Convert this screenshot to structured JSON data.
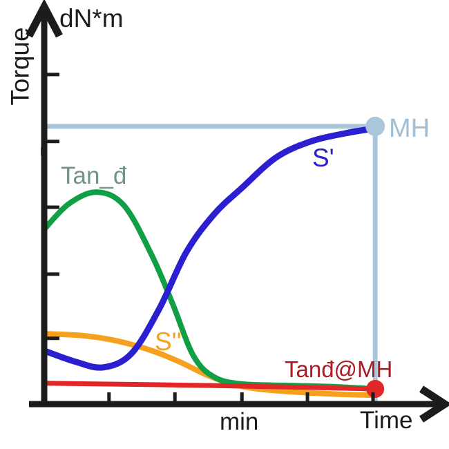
{
  "page": {
    "background": "#ffffff"
  },
  "axes": {
    "y_label": "Torque",
    "y_unit_label": "dN*m",
    "x_label": "Time",
    "x_unit_label": "min",
    "color": "#1c1c1c"
  },
  "curve_labels": {
    "tan_delta": {
      "text": "Tan_đ",
      "color": "#6f9681"
    },
    "s_prime": {
      "text": "S'",
      "color": "#2a20cf"
    },
    "s_double_prime": {
      "text": "S''",
      "color": "#f6a11e"
    },
    "mh": {
      "text": "MH",
      "color": "#a3bed2"
    },
    "tan_delta_at_mh": {
      "text": "Tanđ@MH",
      "color": "#a81c25"
    }
  },
  "chart_data": {
    "type": "line",
    "title": "",
    "xlabel": "Time",
    "x_unit": "min",
    "ylabel": "Torque",
    "y_unit": "dN*m",
    "x_range": [
      0,
      1
    ],
    "y_range": [
      0,
      1
    ],
    "grid": false,
    "legend_position": "inline-labels",
    "axis_color": "#1c1c1c",
    "series": [
      {
        "name": "S'",
        "color": "#2a20cf",
        "width": 9,
        "z": 4,
        "points": [
          [
            0,
            0.138
          ],
          [
            0.086,
            0.109
          ],
          [
            0.16,
            0.095
          ],
          [
            0.235,
            0.13
          ],
          [
            0.31,
            0.245
          ],
          [
            0.384,
            0.393
          ],
          [
            0.459,
            0.491
          ],
          [
            0.534,
            0.559
          ],
          [
            0.627,
            0.638
          ],
          [
            0.72,
            0.679
          ],
          [
            0.813,
            0.7
          ],
          [
            0.894,
            0.713
          ]
        ]
      },
      {
        "name": "Tan_đ",
        "color": "#109e46",
        "width": 8,
        "z": 2,
        "points": [
          [
            0,
            0.452
          ],
          [
            0.067,
            0.518
          ],
          [
            0.142,
            0.548
          ],
          [
            0.216,
            0.513
          ],
          [
            0.291,
            0.384
          ],
          [
            0.347,
            0.259
          ],
          [
            0.403,
            0.125
          ],
          [
            0.459,
            0.07
          ],
          [
            0.534,
            0.052
          ],
          [
            0.664,
            0.048
          ],
          [
            0.776,
            0.045
          ],
          [
            0.894,
            0.039
          ]
        ]
      },
      {
        "name": "S''",
        "color": "#f6a11e",
        "width": 8,
        "z": 1,
        "points": [
          [
            0,
            0.182
          ],
          [
            0.104,
            0.177
          ],
          [
            0.198,
            0.163
          ],
          [
            0.291,
            0.138
          ],
          [
            0.366,
            0.109
          ],
          [
            0.44,
            0.075
          ],
          [
            0.515,
            0.05
          ],
          [
            0.59,
            0.038
          ],
          [
            0.701,
            0.03
          ],
          [
            0.813,
            0.025
          ],
          [
            0.894,
            0.023
          ]
        ]
      },
      {
        "name": "Tanđ@MH",
        "color": "#e12727",
        "width": 7,
        "z": 3,
        "points": [
          [
            0,
            0.054
          ],
          [
            0.45,
            0.048
          ],
          [
            0.894,
            0.0393
          ]
        ]
      }
    ],
    "reference": {
      "name": "MH",
      "mh_level": 0.718,
      "time_at_mh": 0.894,
      "color": "#a9c6da",
      "width": 7
    },
    "markers": [
      {
        "name": "mh-point",
        "shape": "circle",
        "x": 0.894,
        "y": 0.718,
        "r": 14,
        "color": "#a9c6da"
      },
      {
        "name": "tand-at-mh-point",
        "shape": "circle",
        "x": 0.894,
        "y": 0.0393,
        "r": 13,
        "color": "#e12727"
      },
      {
        "name": "red-axis-marker",
        "shape": "axis-rect",
        "x": 0.0,
        "y": 0.654,
        "color": "#e12727"
      }
    ],
    "ticks": {
      "x": [
        0.175,
        0.353,
        0.534,
        0.711,
        0.888
      ],
      "y": [
        0.17,
        0.336,
        0.509,
        0.679,
        0.852
      ]
    }
  }
}
